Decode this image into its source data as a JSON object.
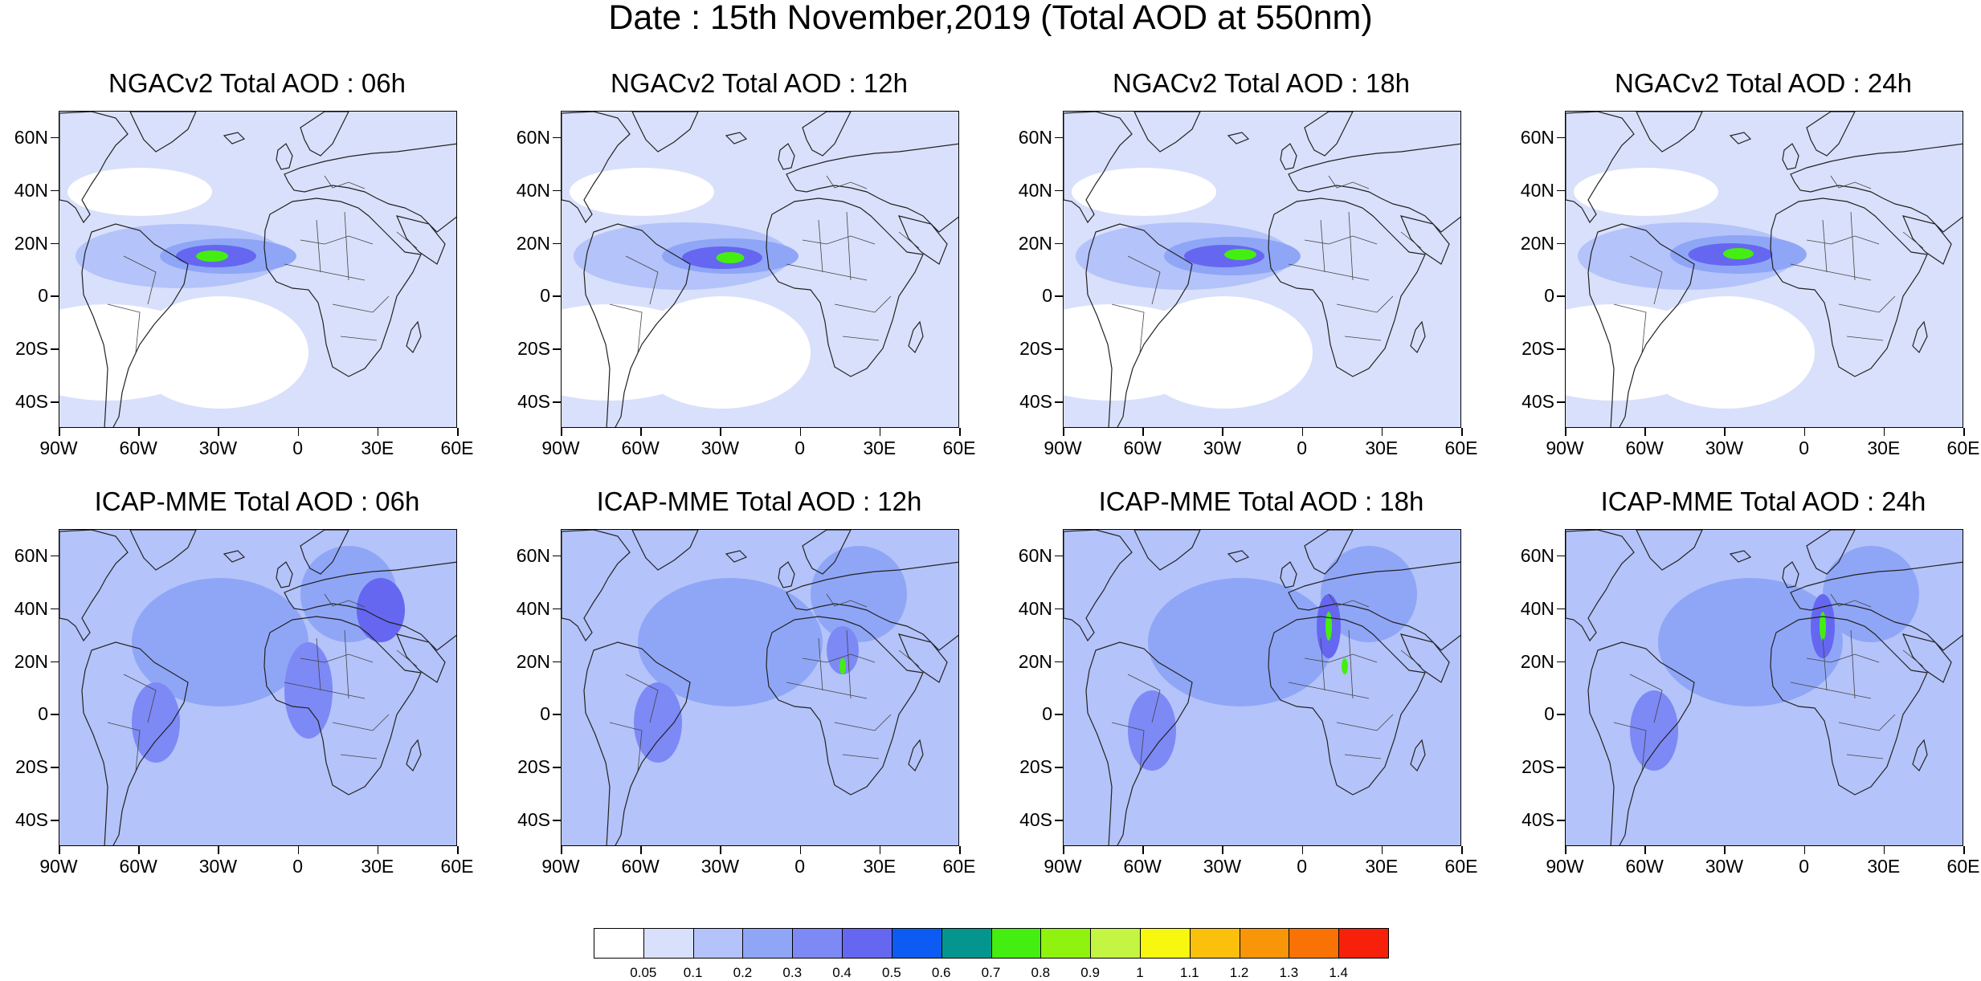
{
  "title": "Date : 15th November,2019 (Total AOD at 550nm)",
  "rows": [
    {
      "model": "NGACv2",
      "panels": [
        {
          "title": "NGACv2 Total AOD : 06h",
          "hour": "06h"
        },
        {
          "title": "NGACv2 Total AOD : 12h",
          "hour": "12h"
        },
        {
          "title": "NGACv2 Total AOD : 18h",
          "hour": "18h"
        },
        {
          "title": "NGACv2 Total AOD : 24h",
          "hour": "24h"
        }
      ]
    },
    {
      "model": "ICAP-MME",
      "panels": [
        {
          "title": "ICAP-MME Total AOD : 06h",
          "hour": "06h"
        },
        {
          "title": "ICAP-MME Total AOD : 12h",
          "hour": "12h"
        },
        {
          "title": "ICAP-MME Total AOD : 18h",
          "hour": "18h"
        },
        {
          "title": "ICAP-MME Total AOD : 24h",
          "hour": "24h"
        }
      ]
    }
  ],
  "axes": {
    "lat_labels": [
      "60N",
      "40N",
      "20N",
      "0",
      "20S",
      "40S"
    ],
    "lon_labels": [
      "90W",
      "60W",
      "30W",
      "0",
      "30E",
      "60E"
    ],
    "lat_range": [
      -50,
      70
    ],
    "lon_range": [
      -90,
      60
    ]
  },
  "colorbar": {
    "colors": [
      "#ffffff",
      "#d9e0fb",
      "#b4c3f9",
      "#8fa6f7",
      "#7d89f5",
      "#6567f1",
      "#0c5cf4",
      "#04968e",
      "#45ee11",
      "#90f20f",
      "#c3f542",
      "#f7f70f",
      "#fac00c",
      "#f99508",
      "#f87205",
      "#f7200b"
    ],
    "labels": [
      "0.05",
      "0.1",
      "0.2",
      "0.3",
      "0.4",
      "0.5",
      "0.6",
      "0.7",
      "0.8",
      "0.9",
      "1",
      "1.1",
      "1.2",
      "1.3",
      "1.4"
    ]
  }
}
